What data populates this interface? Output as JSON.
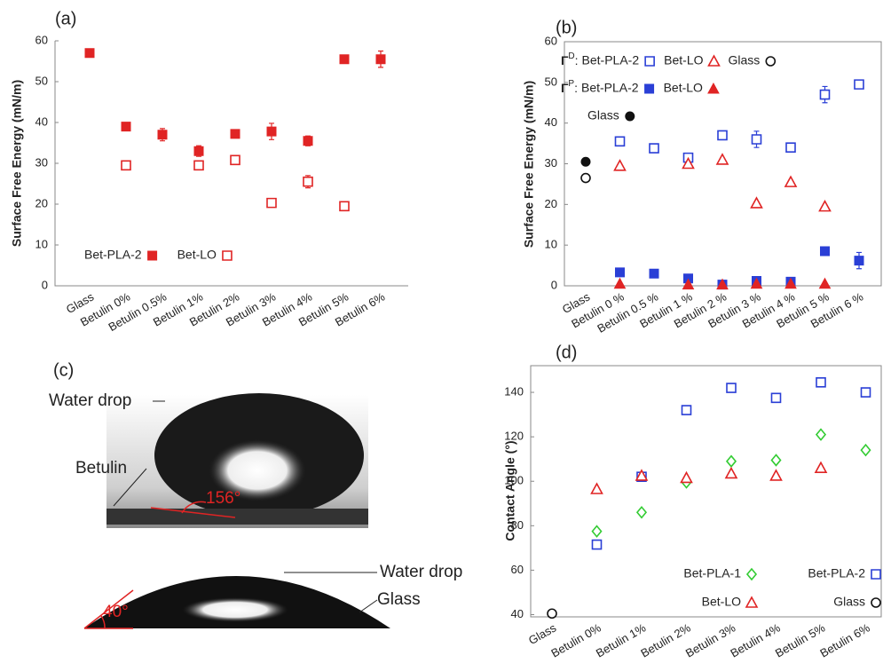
{
  "chart_data": [
    {
      "type": "scatter",
      "panel_label": "(a)",
      "y_label": "Surface Free Energy (mN/m)",
      "categories": [
        "Glass",
        "Betulin 0%",
        "Betulin 0.5%",
        "Betulin 1%",
        "Betulin 2%",
        "Betulin 3%",
        "Betulin 4%",
        "Betulin 5%",
        "Betulin 6%"
      ],
      "ylim": [
        0,
        60
      ],
      "yticks": [
        0,
        10,
        20,
        30,
        40,
        50,
        60
      ],
      "legend": "lower left",
      "series": [
        {
          "name": "Bet-PLA-2",
          "color": "#e02424",
          "marker": "square",
          "values": [
            57,
            39,
            37,
            33,
            37.2,
            37.8,
            35.5,
            55.5,
            55.5
          ],
          "errors": [
            0.8,
            0.8,
            1.5,
            1.3,
            0.8,
            2,
            1.2,
            0.8,
            2
          ]
        },
        {
          "name": "Bet-LO",
          "color": "#e02424",
          "marker": "square-open",
          "values": [
            null,
            29.5,
            null,
            29.5,
            30.8,
            20.3,
            25.5,
            19.5,
            null
          ],
          "errors": [
            null,
            0.8,
            null,
            0.8,
            0.6,
            0.6,
            1.5,
            0.6,
            null
          ]
        }
      ]
    },
    {
      "type": "scatter",
      "panel_label": "(b)",
      "y_label": "Surface Free Energy (mN/m)",
      "categories": [
        "Glass",
        "Betulin 0 %",
        "Betulin 0.5 %",
        "Betulin 1 %",
        "Betulin 2 %",
        "Betulin 3 %",
        "Betulin 4 %",
        "Betulin 5 %",
        "Betulin 6 %"
      ],
      "ylim": [
        0,
        60
      ],
      "yticks": [
        0,
        10,
        20,
        30,
        40,
        50,
        60
      ],
      "legend": "upper left",
      "series_groups": [
        {
          "symbol": "Γ",
          "superscript": "D",
          "separator": ":",
          "series": [
            {
              "name": "Bet-PLA-2",
              "color": "#2a3fd6",
              "marker": "square-open",
              "values": [
                null,
                35.5,
                33.8,
                31.5,
                37,
                36,
                34,
                47,
                49.5
              ],
              "errors": [
                null,
                0.8,
                0.6,
                1,
                0.6,
                2,
                0.6,
                2,
                0.6
              ]
            },
            {
              "name": "Bet-LO",
              "color": "#e02424",
              "marker": "triangle-open",
              "values": [
                null,
                29.5,
                null,
                30,
                31,
                20.3,
                25.5,
                19.5,
                null
              ]
            },
            {
              "name": "Glass",
              "color": "#111111",
              "marker": "circle-open",
              "values": [
                26.5,
                null,
                null,
                null,
                null,
                null,
                null,
                null,
                null
              ]
            }
          ]
        },
        {
          "symbol": "Γ",
          "superscript": "P",
          "separator": ":",
          "series": [
            {
              "name": "Bet-PLA-2",
              "color": "#2a3fd6",
              "marker": "square",
              "values": [
                null,
                3.3,
                3,
                1.8,
                0.3,
                1.2,
                1,
                8.5,
                6.2
              ],
              "errors": [
                null,
                0.6,
                0.8,
                0.5,
                0.3,
                0.5,
                0.5,
                0.8,
                2
              ]
            },
            {
              "name": "Bet-LO",
              "color": "#e02424",
              "marker": "triangle",
              "values": [
                null,
                0.5,
                null,
                0.3,
                0.3,
                0.5,
                0.5,
                0.5,
                null
              ]
            }
          ]
        },
        {
          "series": [
            {
              "name": "Glass",
              "color": "#111111",
              "marker": "circle",
              "values": [
                30.5,
                null,
                null,
                null,
                null,
                null,
                null,
                null,
                null
              ]
            }
          ]
        }
      ]
    },
    {
      "type": "scatter",
      "panel_label": "(d)",
      "y_label": "Contact Angle (°)",
      "categories": [
        "Glass",
        "Betulin 0%",
        "Betulin 1%",
        "Betulin 2%",
        "Betulin 3%",
        "Betulin 4%",
        "Betulin 5%",
        "Betulin 6%"
      ],
      "ylim": [
        39,
        152
      ],
      "yticks": [
        40,
        60,
        80,
        100,
        120,
        140
      ],
      "legend": "lower right",
      "series": [
        {
          "name": "Bet-PLA-1",
          "color": "#33cc33",
          "marker": "diamond-open",
          "values": [
            null,
            77.5,
            86,
            99.5,
            109,
            109.5,
            121,
            114
          ]
        },
        {
          "name": "Bet-PLA-2",
          "color": "#2a3fd6",
          "marker": "square-open",
          "values": [
            null,
            71.5,
            102,
            132,
            142,
            137.5,
            144.5,
            140
          ]
        },
        {
          "name": "Bet-LO",
          "color": "#e02424",
          "marker": "triangle-open",
          "values": [
            null,
            96.5,
            102.5,
            101.5,
            103.5,
            102.5,
            106,
            null
          ]
        },
        {
          "name": "Glass",
          "color": "#111111",
          "marker": "circle-open",
          "values": [
            40.5,
            null,
            null,
            null,
            null,
            null,
            null,
            null
          ]
        }
      ]
    }
  ],
  "photo": {
    "panel_label": "(c)",
    "top": {
      "drop_label": "Water drop",
      "surface_label": "Betulin",
      "angle": "156°"
    },
    "bottom": {
      "drop_label": "Water drop",
      "surface_label": "Glass",
      "angle": "40°"
    }
  }
}
